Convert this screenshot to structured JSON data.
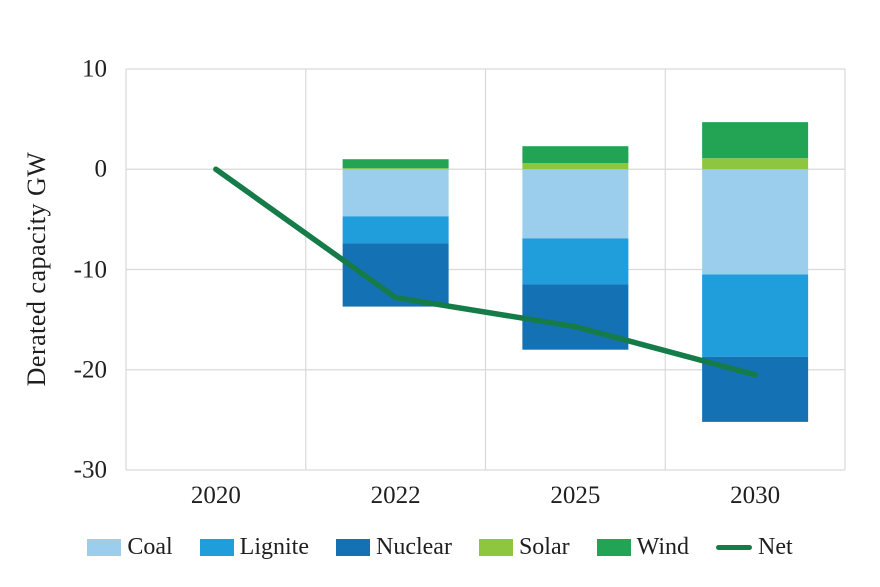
{
  "chart_data": {
    "type": "bar",
    "subtype": "stacked-column-with-net-line",
    "title": "",
    "xlabel": "",
    "ylabel": "Derated capacity GW",
    "categories": [
      "2020",
      "2022",
      "2025",
      "2030"
    ],
    "y_ticks": [
      10,
      0,
      -10,
      -20,
      -30
    ],
    "ylim": [
      -30,
      10
    ],
    "grid": true,
    "legend_position": "bottom",
    "series": [
      {
        "name": "Coal",
        "color": "#9bcdec",
        "values": [
          0,
          -4.7,
          -6.9,
          -10.5
        ]
      },
      {
        "name": "Lignite",
        "color": "#209edb",
        "values": [
          0,
          -2.7,
          -4.6,
          -8.2
        ]
      },
      {
        "name": "Nuclear",
        "color": "#1471b3",
        "values": [
          0,
          -6.3,
          -6.5,
          -6.5
        ]
      },
      {
        "name": "Solar",
        "color": "#8ec63f",
        "values": [
          0,
          0.1,
          0.6,
          1.1
        ]
      },
      {
        "name": "Wind",
        "color": "#23a455",
        "values": [
          0,
          0.9,
          1.7,
          3.6
        ]
      }
    ],
    "net_line": {
      "name": "Net",
      "color": "#157c49",
      "values": [
        0,
        -12.8,
        -15.7,
        -20.5
      ]
    },
    "colors": {
      "grid": "#d9d9d9",
      "background": "#ffffff",
      "text": "#1f1f1f"
    }
  }
}
